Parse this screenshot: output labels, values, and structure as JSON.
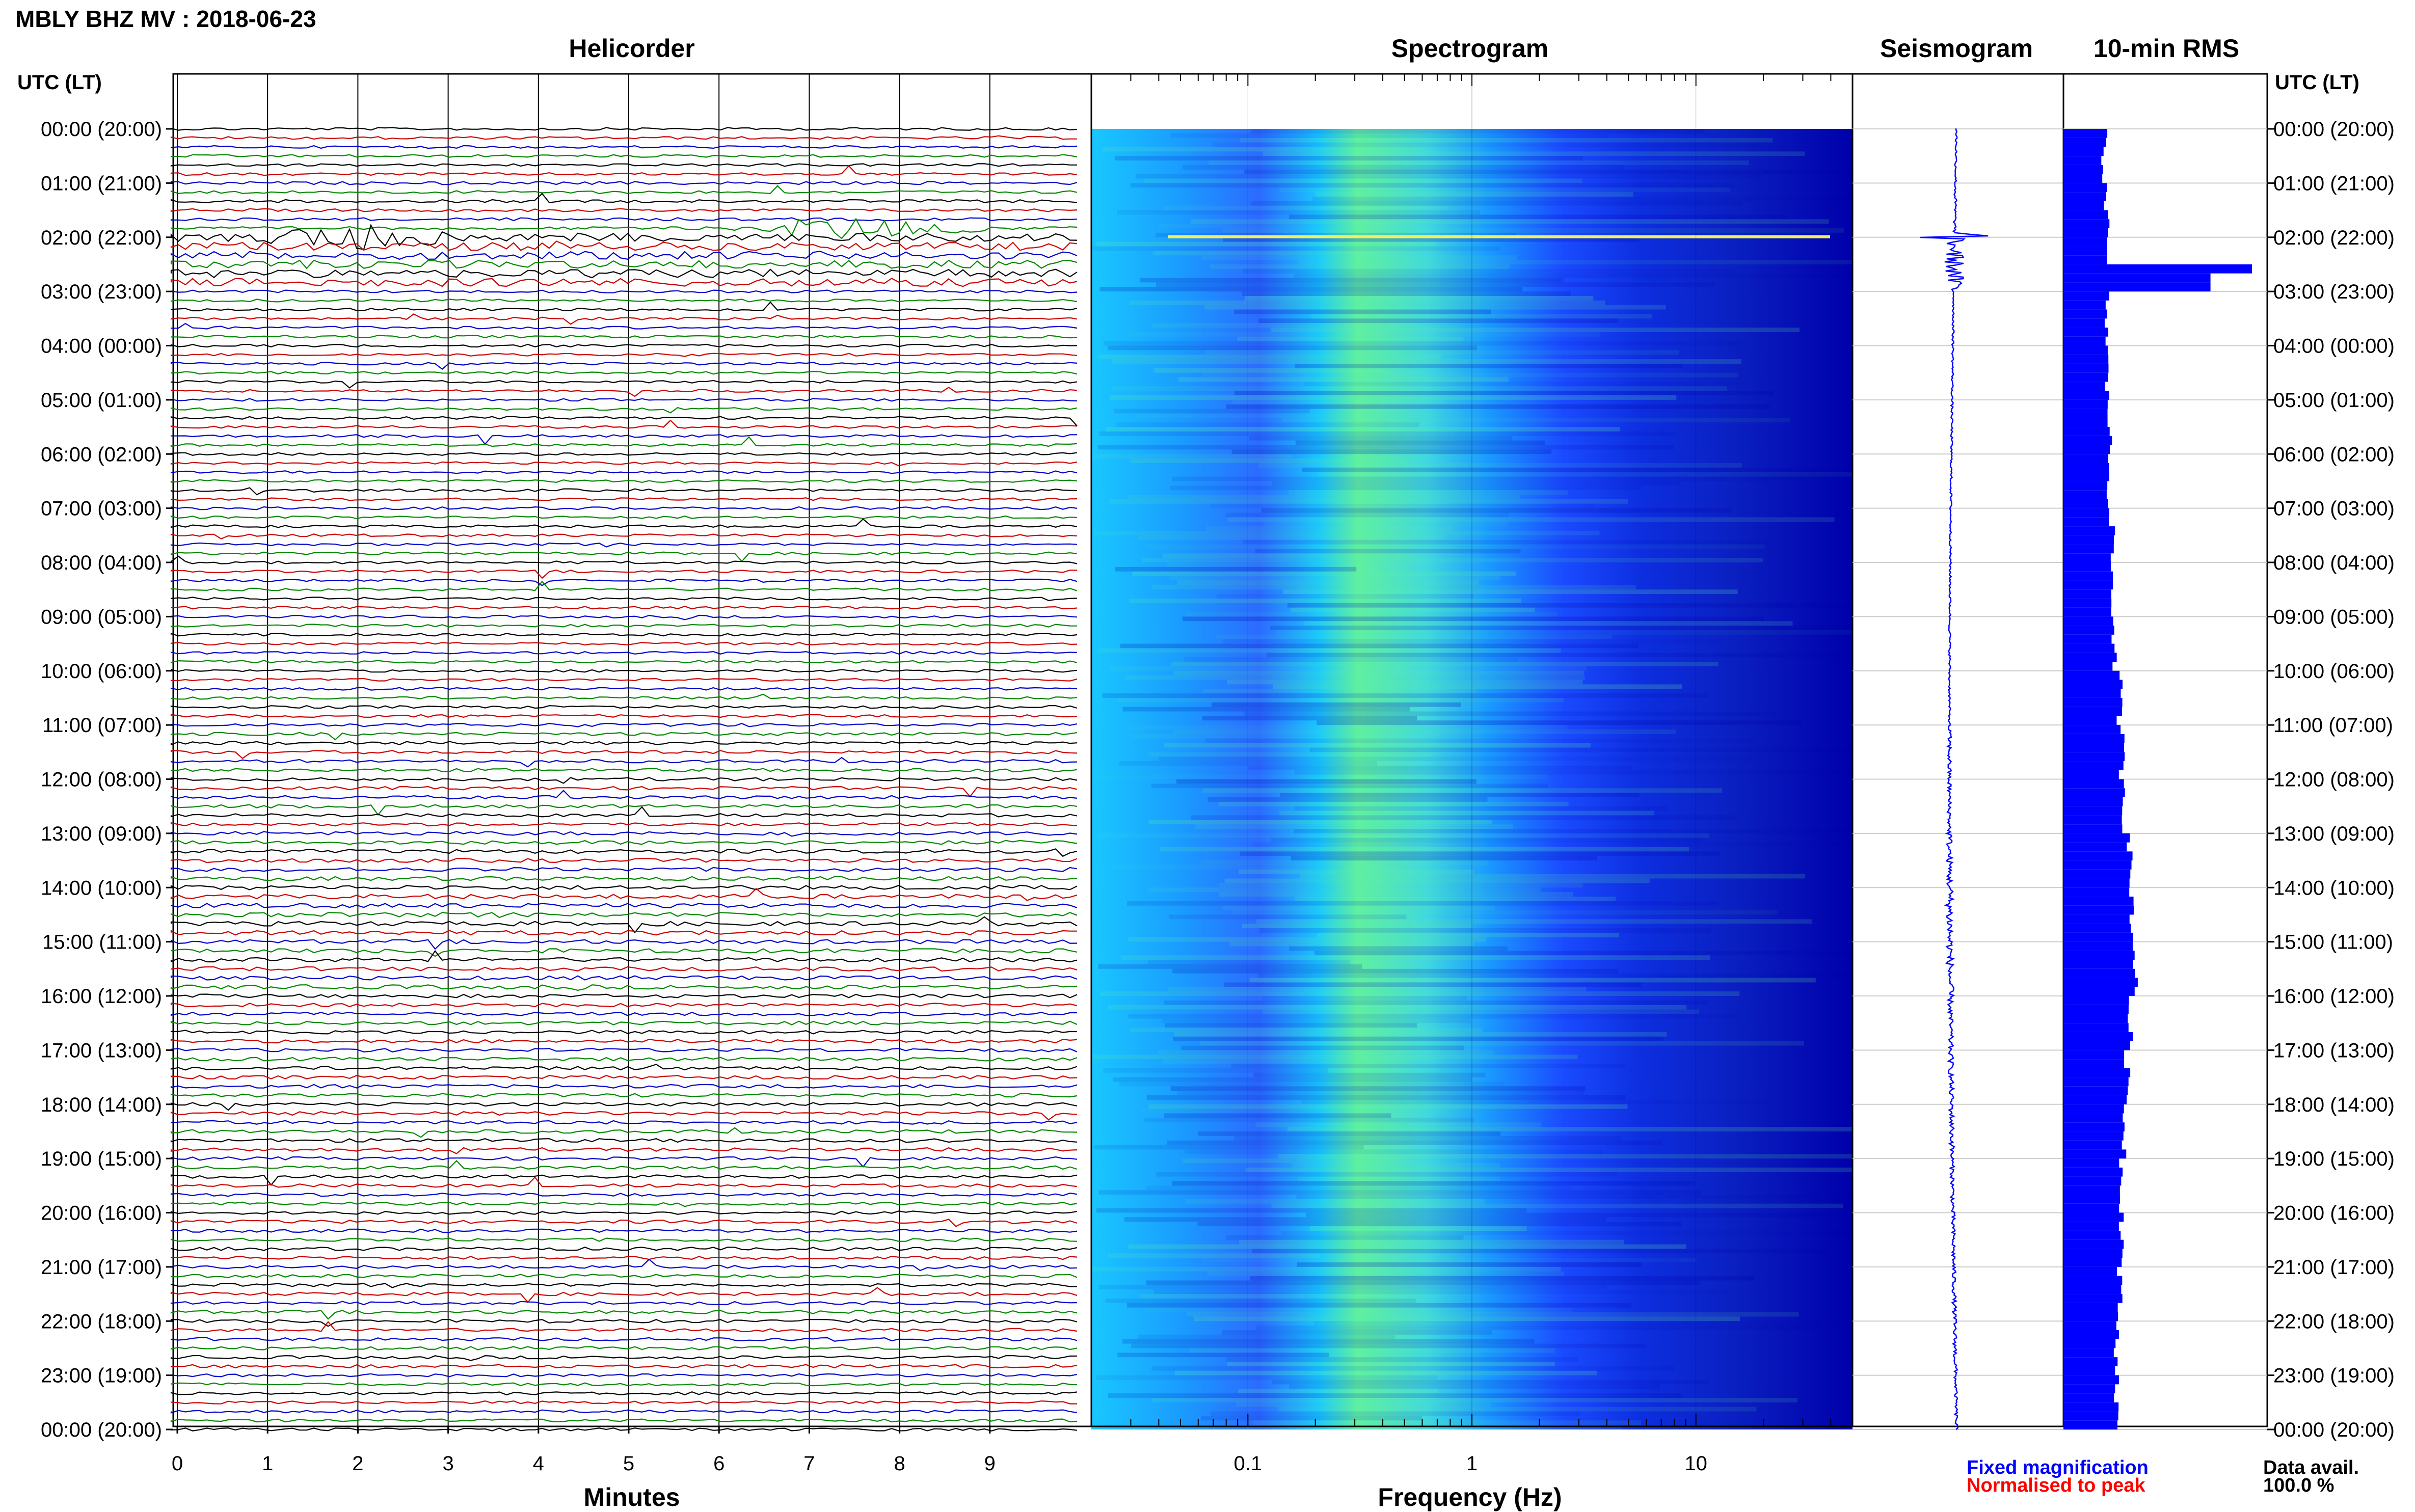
{
  "header": {
    "title": "MBLY BHZ MV : 2018-06-23",
    "time_axis_label": "UTC (LT)"
  },
  "panels": {
    "helicorder": "Helicorder",
    "spectrogram": "Spectrogram",
    "seismogram": "Seismogram",
    "rms": "10-min RMS"
  },
  "axes": {
    "minutes_label": "Minutes",
    "frequency_label": "Frequency (Hz)",
    "minute_ticks": [
      "0",
      "1",
      "2",
      "3",
      "4",
      "5",
      "6",
      "7",
      "8",
      "9"
    ],
    "frequency_ticks": [
      "0.1",
      "1",
      "10"
    ]
  },
  "legend": {
    "fixed": "Fixed magnification",
    "normalised": "Normalised to peak",
    "fixed_color": "#0000ff",
    "normalised_color": "#ff0000"
  },
  "data_availability": {
    "label": "Data avail.",
    "value": "100.0 %"
  },
  "chart_data": [
    {
      "type": "line",
      "name": "helicorder",
      "xlabel": "Minutes",
      "xlim": [
        0,
        10
      ],
      "y_tick_labels": [
        "00:00 (20:00)",
        "01:00 (21:00)",
        "02:00 (22:00)",
        "03:00 (23:00)",
        "04:00 (00:00)",
        "05:00 (01:00)",
        "06:00 (02:00)",
        "07:00 (03:00)",
        "08:00 (04:00)",
        "09:00 (05:00)",
        "10:00 (06:00)",
        "11:00 (07:00)",
        "12:00 (08:00)",
        "13:00 (09:00)",
        "14:00 (10:00)",
        "15:00 (11:00)",
        "16:00 (12:00)",
        "17:00 (13:00)",
        "18:00 (14:00)",
        "19:00 (15:00)",
        "20:00 (16:00)",
        "21:00 (17:00)",
        "22:00 (18:00)",
        "23:00 (19:00)",
        "00:00 (20:00)"
      ],
      "traces_per_hour": 6,
      "trace_colors": [
        "#000000",
        "#cc0000",
        "#0000cc",
        "#008800"
      ],
      "events": [
        {
          "trace": 12,
          "start_min": 0.8,
          "end_min": 3.2,
          "peak_min": 1.8
        },
        {
          "trace": 11,
          "start_min": 6.1,
          "end_min": 9.0,
          "peak_min": 7.3
        }
      ]
    },
    {
      "type": "heatmap",
      "name": "spectrogram",
      "xlabel": "Frequency (Hz)",
      "x_scale": "log",
      "xlim": [
        0.02,
        50
      ],
      "colormap": [
        "#0000aa",
        "#1a4bff",
        "#19c8ff",
        "#60f0a0",
        "#f0f060"
      ]
    },
    {
      "type": "line",
      "name": "seismogram",
      "title": "Seismogram",
      "hour_amplitude": [
        0.2,
        0.3,
        2.0,
        0.2,
        0.2,
        0.2,
        0.2,
        0.2,
        0.2,
        0.2,
        0.2,
        0.4,
        0.4,
        0.6,
        0.8,
        0.7,
        0.5,
        0.5,
        0.5,
        0.4,
        0.4,
        0.4,
        0.4,
        0.3,
        0.3
      ]
    },
    {
      "type": "bar",
      "name": "10-min RMS",
      "title": "10-min RMS",
      "hourly_rms": [
        1.6,
        1.7,
        7.4,
        1.7,
        1.7,
        1.8,
        1.8,
        1.9,
        1.9,
        2.0,
        2.2,
        2.3,
        2.4,
        2.6,
        2.7,
        2.8,
        2.6,
        2.5,
        2.4,
        2.3,
        2.3,
        2.2,
        2.1,
        2.1,
        2.3
      ],
      "rms_max": 8
    }
  ]
}
